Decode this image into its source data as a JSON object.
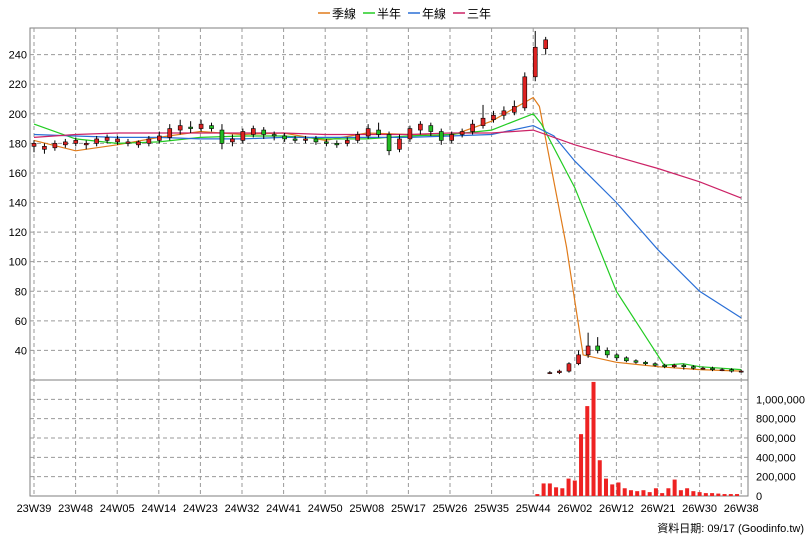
{
  "legend": [
    {
      "label": "季線",
      "color": "#e07b1a"
    },
    {
      "label": "半年",
      "color": "#22cc22"
    },
    {
      "label": "年線",
      "color": "#2a6fd6"
    },
    {
      "label": "三年",
      "color": "#cc2266"
    }
  ],
  "credit": "資料日期: 09/17  (Goodinfo.tw)",
  "chart_data": [
    {
      "type": "line",
      "title": "",
      "ylabel": "",
      "ylim": [
        20,
        258
      ],
      "yticks": [
        40,
        60,
        80,
        100,
        120,
        140,
        160,
        180,
        200,
        220,
        240
      ],
      "categories": [
        "23W39",
        "23W48",
        "24W05",
        "24W14",
        "24W23",
        "24W32",
        "24W41",
        "24W50",
        "25W08",
        "25W17",
        "25W26",
        "25W35",
        "25W44",
        "26W02",
        "26W12",
        "26W21",
        "26W30",
        "26W38"
      ],
      "grid": true,
      "series": [
        {
          "name": "季線",
          "color": "#e07b1a",
          "x": [
            0,
            1,
            2,
            3,
            4,
            5,
            6,
            7,
            8,
            9,
            10,
            11,
            12,
            12.15,
            12.8,
            13.2,
            14,
            15,
            16,
            17
          ],
          "y": [
            182,
            175,
            179,
            184,
            188,
            186,
            187,
            182,
            187,
            186,
            185,
            195,
            211,
            205,
            110,
            37,
            32,
            29,
            27,
            26
          ]
        },
        {
          "name": "半年",
          "color": "#22cc22",
          "x": [
            0,
            1,
            2,
            3,
            4,
            5,
            6,
            7,
            8,
            9,
            10,
            11,
            12,
            12.2,
            13,
            14,
            15.15,
            15.6,
            16,
            17
          ],
          "y": [
            193,
            183,
            180,
            181,
            184,
            185,
            185,
            183,
            183,
            185,
            186,
            189,
            200,
            193,
            150,
            80,
            30,
            31,
            29,
            27
          ]
        },
        {
          "name": "年線",
          "color": "#2a6fd6",
          "x": [
            0,
            1,
            2,
            3,
            4,
            5,
            6,
            7,
            8,
            9,
            10,
            11,
            12,
            12.5,
            13,
            14,
            15,
            16,
            17
          ],
          "y": [
            186,
            185,
            184,
            184,
            183,
            183,
            184,
            184,
            184,
            184,
            185,
            186,
            192,
            185,
            168,
            140,
            108,
            80,
            62
          ]
        },
        {
          "name": "三年",
          "color": "#cc2266",
          "x": [
            0,
            1,
            2,
            3,
            4,
            5,
            6,
            7,
            8,
            9,
            10,
            11,
            12,
            13,
            14,
            15,
            16,
            17
          ],
          "y": [
            184,
            186,
            187,
            187,
            187,
            187,
            187,
            186,
            186,
            186,
            187,
            187,
            189,
            179,
            171,
            163,
            154,
            143
          ]
        }
      ],
      "candles": [
        [
          178,
          180,
          174,
          182
        ],
        [
          176,
          178,
          173,
          180
        ],
        [
          177,
          180,
          175,
          182
        ],
        [
          179,
          181,
          177,
          183
        ],
        [
          180,
          182,
          178,
          184
        ],
        [
          179,
          180,
          176,
          182
        ],
        [
          180,
          183,
          178,
          185
        ],
        [
          182,
          184,
          180,
          186
        ],
        [
          181,
          183,
          179,
          185
        ],
        [
          180,
          181,
          178,
          183
        ],
        [
          179,
          181,
          177,
          182
        ],
        [
          180,
          183,
          178,
          185
        ],
        [
          182,
          185,
          180,
          188
        ],
        [
          184,
          190,
          182,
          193
        ],
        [
          189,
          192,
          186,
          196
        ],
        [
          191,
          190,
          187,
          195
        ],
        [
          190,
          193,
          188,
          196
        ],
        [
          192,
          190,
          188,
          194
        ],
        [
          189,
          180,
          176,
          193
        ],
        [
          181,
          183,
          178,
          186
        ],
        [
          182,
          188,
          180,
          190
        ],
        [
          186,
          190,
          184,
          192
        ],
        [
          189,
          186,
          183,
          191
        ],
        [
          186,
          185,
          182,
          188
        ],
        [
          185,
          183,
          181,
          187
        ],
        [
          183,
          182,
          180,
          185
        ],
        [
          182,
          183,
          180,
          185
        ],
        [
          183,
          181,
          179,
          185
        ],
        [
          181,
          180,
          178,
          183
        ],
        [
          180,
          179,
          177,
          182
        ],
        [
          180,
          182,
          178,
          184
        ],
        [
          182,
          186,
          180,
          188
        ],
        [
          185,
          190,
          183,
          193
        ],
        [
          189,
          186,
          184,
          194
        ],
        [
          186,
          175,
          172,
          188
        ],
        [
          176,
          183,
          174,
          186
        ],
        [
          183,
          190,
          181,
          192
        ],
        [
          189,
          193,
          186,
          195
        ],
        [
          192,
          188,
          185,
          194
        ],
        [
          188,
          182,
          179,
          190
        ],
        [
          182,
          186,
          180,
          188
        ],
        [
          186,
          188,
          184,
          190
        ],
        [
          188,
          193,
          186,
          196
        ],
        [
          192,
          197,
          190,
          206
        ],
        [
          196,
          199,
          194,
          202
        ],
        [
          199,
          202,
          196,
          205
        ],
        [
          201,
          205,
          199,
          209
        ],
        [
          204,
          225,
          202,
          228
        ],
        [
          225,
          245,
          222,
          256
        ],
        [
          244,
          250,
          240,
          252
        ]
      ],
      "candles2": [
        [
          25,
          25,
          24,
          26
        ],
        [
          25,
          26,
          24,
          27
        ],
        [
          26,
          31,
          25,
          32
        ],
        [
          31,
          37,
          30,
          40
        ],
        [
          37,
          43,
          35,
          52
        ],
        [
          43,
          40,
          38,
          49
        ],
        [
          40,
          37,
          35,
          42
        ],
        [
          37,
          35,
          33,
          38
        ],
        [
          35,
          33,
          32,
          36
        ],
        [
          33,
          32,
          31,
          34
        ],
        [
          32,
          31,
          30,
          33
        ],
        [
          31,
          30,
          29,
          32
        ],
        [
          30,
          29,
          28,
          31
        ],
        [
          29,
          30,
          28,
          31
        ],
        [
          30,
          29,
          27,
          31
        ],
        [
          29,
          28,
          27,
          30
        ],
        [
          28,
          28,
          27,
          29
        ],
        [
          28,
          27,
          26,
          29
        ],
        [
          27,
          27,
          26,
          28
        ],
        [
          27,
          26,
          25,
          28
        ],
        [
          26,
          26,
          25,
          27
        ]
      ],
      "ytick_labels": [
        "40",
        "60",
        "80",
        "100",
        "120",
        "140",
        "160",
        "180",
        "200",
        "220",
        "240"
      ]
    },
    {
      "type": "bar",
      "ylim": [
        0,
        1200000
      ],
      "yticks": [
        0,
        200000,
        400000,
        600000,
        800000,
        1000000
      ],
      "ytick_labels": [
        "0",
        "200,000",
        "400,000",
        "600,000",
        "800,000",
        "1,000,000"
      ],
      "x": [
        12.1,
        12.25,
        12.4,
        12.55,
        12.7,
        12.85,
        13.0,
        13.15,
        13.3,
        13.45,
        13.6,
        13.75,
        13.9,
        14.05,
        14.2,
        14.35,
        14.5,
        14.65,
        14.8,
        14.95,
        15.1,
        15.25,
        15.4,
        15.55,
        15.7,
        15.85,
        16.0,
        16.15,
        16.3,
        16.45,
        16.6,
        16.75,
        16.9
      ],
      "values": [
        20000,
        130000,
        130000,
        90000,
        80000,
        180000,
        160000,
        640000,
        930000,
        1180000,
        370000,
        180000,
        120000,
        140000,
        80000,
        60000,
        50000,
        60000,
        40000,
        80000,
        30000,
        80000,
        170000,
        60000,
        80000,
        50000,
        40000,
        30000,
        30000,
        25000,
        20000,
        20000,
        20000
      ],
      "color": "#ee2222"
    }
  ]
}
